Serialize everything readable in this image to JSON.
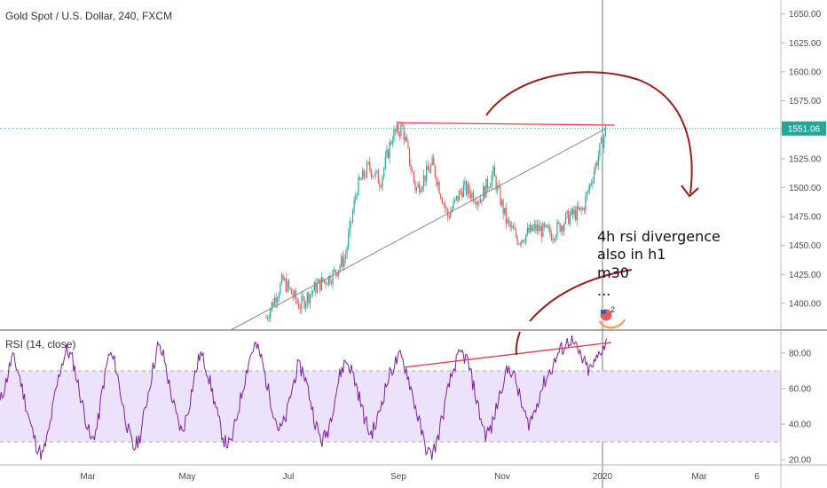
{
  "chart_data": [
    {
      "type": "candlestick",
      "title": "Gold Spot / U.S. Dollar, 240, FXCM",
      "price_ticks": [
        1400,
        1425,
        1450,
        1475,
        1500,
        1525,
        1550,
        1575,
        1600,
        1625,
        1650
      ],
      "ylim": [
        1377,
        1662
      ],
      "last_price": "1551.06",
      "x_ticks": [
        "Mar",
        "May",
        "Jul",
        "Sep",
        "Nov",
        "2020",
        "Mar",
        "6"
      ],
      "price_path": [
        {
          "x": "Jun 15",
          "y": 1388
        },
        {
          "x": "Jun 25",
          "y": 1420
        },
        {
          "x": "Jul 5",
          "y": 1398
        },
        {
          "x": "Jul 15",
          "y": 1415
        },
        {
          "x": "Jul 25",
          "y": 1425
        },
        {
          "x": "Aug 1",
          "y": 1440
        },
        {
          "x": "Aug 8",
          "y": 1500
        },
        {
          "x": "Aug 15",
          "y": 1518
        },
        {
          "x": "Aug 22",
          "y": 1505
        },
        {
          "x": "Aug 29",
          "y": 1545
        },
        {
          "x": "Sep 4",
          "y": 1552
        },
        {
          "x": "Sep 12",
          "y": 1498
        },
        {
          "x": "Sep 22",
          "y": 1520
        },
        {
          "x": "Oct 1",
          "y": 1475
        },
        {
          "x": "Oct 10",
          "y": 1500
        },
        {
          "x": "Oct 20",
          "y": 1490
        },
        {
          "x": "Oct 28",
          "y": 1512
        },
        {
          "x": "Nov 5",
          "y": 1470
        },
        {
          "x": "Nov 12",
          "y": 1455
        },
        {
          "x": "Nov 22",
          "y": 1465
        },
        {
          "x": "Dec 2",
          "y": 1460
        },
        {
          "x": "Dec 12",
          "y": 1475
        },
        {
          "x": "Dec 20",
          "y": 1480
        },
        {
          "x": "Dec 27",
          "y": 1515
        },
        {
          "x": "Jan 3",
          "y": 1551
        }
      ],
      "drawings": {
        "resistance_line": {
          "from": {
            "x": "Sep 1",
            "y": 1556
          },
          "to": {
            "x": "Jan 3",
            "y": 1554
          }
        },
        "trend_line": {
          "from": {
            "x": "May 25",
            "y": 1377
          },
          "to": {
            "x": "Jan 3",
            "y": 1551
          }
        }
      },
      "annotation": [
        "4h rsi divergence",
        "also in h1",
        "m30",
        "..."
      ],
      "event_badge": "2"
    },
    {
      "type": "line",
      "title": "RSI (14, close)",
      "y_ticks": [
        20,
        40,
        60,
        80
      ],
      "ylim": [
        17,
        93
      ],
      "band": [
        30,
        70
      ],
      "series": [
        {
          "values": [
            52,
            64,
            78,
            70,
            55,
            40,
            28,
            22,
            35,
            55,
            72,
            82,
            76,
            60,
            45,
            30,
            38,
            62,
            80,
            74,
            55,
            38,
            26,
            32,
            50,
            68,
            84,
            78,
            60,
            45,
            35,
            48,
            66,
            80,
            72,
            58,
            42,
            30,
            28,
            44,
            60,
            76,
            85,
            78,
            62,
            48,
            36,
            42,
            58,
            72,
            70,
            56,
            40,
            30,
            36,
            52,
            68,
            76,
            70,
            58,
            44,
            34,
            40,
            54,
            66,
            74,
            78,
            70,
            56,
            42,
            28,
            22,
            30,
            46,
            62,
            74,
            80,
            76,
            62,
            46,
            34,
            38,
            52,
            66,
            72,
            64,
            50,
            40,
            46,
            58,
            66,
            72,
            80,
            84,
            88,
            82,
            76,
            70,
            74,
            82,
            86
          ]
        }
      ],
      "divergence_line": {
        "from": {
          "x": "Sep 5",
          "y": 72
        },
        "to": {
          "x": "Jan 3",
          "y": 86
        }
      }
    }
  ]
}
